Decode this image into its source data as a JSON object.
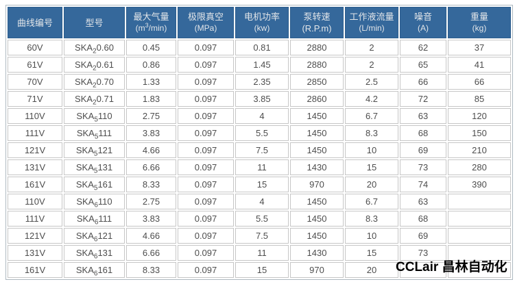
{
  "watermark": {
    "text": "CCLair 昌林自动化"
  },
  "colors": {
    "header_bg": "#35689B",
    "header_border": "#2c5d8d",
    "header_text": "#e3e6e9",
    "cell_border": "#c6c6c6",
    "cell_text": "#4d4d4d",
    "table_border": "#adb8c0"
  },
  "table": {
    "headers": [
      {
        "title": "曲线编号"
      },
      {
        "title": "型号"
      },
      {
        "title": "最大气量",
        "unit_pre": "(m",
        "unit_sup": "3",
        "unit_post": "/min)"
      },
      {
        "title": "极限真空",
        "unit": "(MPa)"
      },
      {
        "title": "电机功率",
        "unit": "(kw)"
      },
      {
        "title": "泵转速(R.P.m)"
      },
      {
        "title": "工作液流量",
        "unit": "(L/min)"
      },
      {
        "title": "噪音",
        "unit": "(A)"
      },
      {
        "title": "重量",
        "unit": "(kg)"
      }
    ],
    "rows": [
      {
        "curve": "60V",
        "model": {
          "pre": "SKA",
          "sub": "2",
          "rest": "0.60"
        },
        "air": "0.45",
        "vacuum": "0.097",
        "power": "0.81",
        "speed": "2880",
        "flow": "2",
        "noise": "62",
        "weight": "37"
      },
      {
        "curve": "61V",
        "model": {
          "pre": "SKA",
          "sub": "2",
          "rest": "0.61"
        },
        "air": "0.86",
        "vacuum": "0.097",
        "power": "1.45",
        "speed": "2880",
        "flow": "2",
        "noise": "65",
        "weight": "41"
      },
      {
        "curve": "70V",
        "model": {
          "pre": "SKA",
          "sub": "2",
          "rest": "0.70"
        },
        "air": "1.33",
        "vacuum": "0.097",
        "power": "2.35",
        "speed": "2850",
        "flow": "2.5",
        "noise": "66",
        "weight": "66"
      },
      {
        "curve": "71V",
        "model": {
          "pre": "SKA",
          "sub": "2",
          "rest": "0.71"
        },
        "air": "1.83",
        "vacuum": "0.097",
        "power": "3.85",
        "speed": "2860",
        "flow": "4.2",
        "noise": "72",
        "weight": "85"
      },
      {
        "curve": "110V",
        "model": {
          "pre": "SKA",
          "sub": "5",
          "rest": "110"
        },
        "air": "2.75",
        "vacuum": "0.097",
        "power": "4",
        "speed": "1450",
        "flow": "6.7",
        "noise": "63",
        "weight": "120"
      },
      {
        "curve": "111V",
        "model": {
          "pre": "SKA",
          "sub": "5",
          "rest": "111"
        },
        "air": "3.83",
        "vacuum": "0.097",
        "power": "5.5",
        "speed": "1450",
        "flow": "8.3",
        "noise": "68",
        "weight": "150"
      },
      {
        "curve": "121V",
        "model": {
          "pre": "SKA",
          "sub": "5",
          "rest": "121"
        },
        "air": "4.66",
        "vacuum": "0.097",
        "power": "7.5",
        "speed": "1450",
        "flow": "10",
        "noise": "69",
        "weight": "210"
      },
      {
        "curve": "131V",
        "model": {
          "pre": "SKA",
          "sub": "5",
          "rest": "131"
        },
        "air": "6.66",
        "vacuum": "0.097",
        "power": "11",
        "speed": "1430",
        "flow": "15",
        "noise": "73",
        "weight": "280"
      },
      {
        "curve": "161V",
        "model": {
          "pre": "SKA",
          "sub": "5",
          "rest": "161"
        },
        "air": "8.33",
        "vacuum": "0.097",
        "power": "15",
        "speed": "970",
        "flow": "20",
        "noise": "74",
        "weight": "390"
      },
      {
        "curve": "110V",
        "model": {
          "pre": "SKA",
          "sub": "6",
          "rest": "110"
        },
        "air": "2.75",
        "vacuum": "0.097",
        "power": "4",
        "speed": "1450",
        "flow": "6.7",
        "noise": "63",
        "weight": ""
      },
      {
        "curve": "111V",
        "model": {
          "pre": "SKA",
          "sub": "6",
          "rest": "111"
        },
        "air": "3.83",
        "vacuum": "0.097",
        "power": "5.5",
        "speed": "1450",
        "flow": "8.3",
        "noise": "68",
        "weight": ""
      },
      {
        "curve": "121V",
        "model": {
          "pre": "SKA",
          "sub": "6",
          "rest": "121"
        },
        "air": "4.66",
        "vacuum": "0.097",
        "power": "7.5",
        "speed": "1450",
        "flow": "10",
        "noise": "69",
        "weight": ""
      },
      {
        "curve": "131V",
        "model": {
          "pre": "SKA",
          "sub": "6",
          "rest": "131"
        },
        "air": "6.66",
        "vacuum": "0.097",
        "power": "11",
        "speed": "1430",
        "flow": "15",
        "noise": "73",
        "weight": ""
      },
      {
        "curve": "161V",
        "model": {
          "pre": "SKA",
          "sub": "6",
          "rest": "161"
        },
        "air": "8.33",
        "vacuum": "0.097",
        "power": "15",
        "speed": "970",
        "flow": "20",
        "noise": "",
        "weight": ""
      }
    ]
  },
  "chart_data": {
    "type": "table",
    "title": "",
    "columns": [
      "曲线编号",
      "型号",
      "最大气量 (m³/min)",
      "极限真空 (MPa)",
      "电机功率 (kw)",
      "泵转速(R.P.m)",
      "工作液流量 (L/min)",
      "噪音 (A)",
      "重量 (kg)"
    ],
    "rows": [
      [
        "60V",
        "SKA₂0.60",
        0.45,
        0.097,
        0.81,
        2880,
        2,
        62,
        37
      ],
      [
        "61V",
        "SKA₂0.61",
        0.86,
        0.097,
        1.45,
        2880,
        2,
        65,
        41
      ],
      [
        "70V",
        "SKA₂0.70",
        1.33,
        0.097,
        2.35,
        2850,
        2.5,
        66,
        66
      ],
      [
        "71V",
        "SKA₂0.71",
        1.83,
        0.097,
        3.85,
        2860,
        4.2,
        72,
        85
      ],
      [
        "110V",
        "SKA₅110",
        2.75,
        0.097,
        4,
        1450,
        6.7,
        63,
        120
      ],
      [
        "111V",
        "SKA₅111",
        3.83,
        0.097,
        5.5,
        1450,
        8.3,
        68,
        150
      ],
      [
        "121V",
        "SKA₅121",
        4.66,
        0.097,
        7.5,
        1450,
        10,
        69,
        210
      ],
      [
        "131V",
        "SKA₅131",
        6.66,
        0.097,
        11,
        1430,
        15,
        73,
        280
      ],
      [
        "161V",
        "SKA₅161",
        8.33,
        0.097,
        15,
        970,
        20,
        74,
        390
      ],
      [
        "110V",
        "SKA₆110",
        2.75,
        0.097,
        4,
        1450,
        6.7,
        63,
        null
      ],
      [
        "111V",
        "SKA₆111",
        3.83,
        0.097,
        5.5,
        1450,
        8.3,
        68,
        null
      ],
      [
        "121V",
        "SKA₆121",
        4.66,
        0.097,
        7.5,
        1450,
        10,
        69,
        null
      ],
      [
        "131V",
        "SKA₆131",
        6.66,
        0.097,
        11,
        1430,
        15,
        73,
        null
      ],
      [
        "161V",
        "SKA₆161",
        8.33,
        0.097,
        15,
        970,
        20,
        null,
        null
      ]
    ],
    "notes": "Watermark 'CCLair 昌林自动化' overlays the noise/weight cells of the last row; weight cells for SKA₆ group are blank."
  }
}
